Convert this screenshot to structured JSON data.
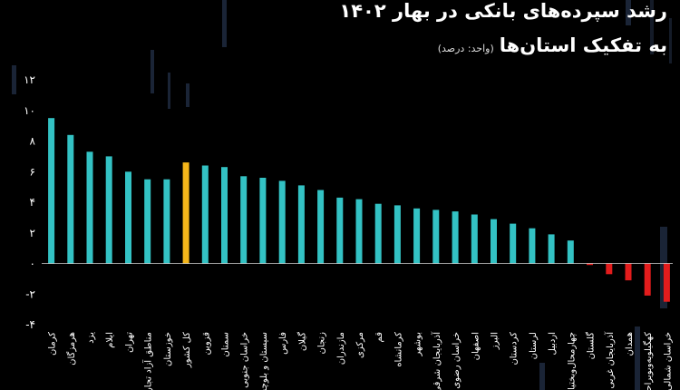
{
  "header": {
    "title": "رشد سپرده‌های بانکی در بهار ۱۴۰۲",
    "subtitle": "به تفکیک استان‌ها",
    "unit": "(واحد: درصد)"
  },
  "chart_data": {
    "type": "bar",
    "title": "رشد سپرده‌های بانکی در بهار ۱۴۰۲",
    "subtitle": "به تفکیک استان‌ها",
    "unit": "(واحد: درصد)",
    "xlabel": "",
    "ylabel": "",
    "ylim": [
      -4,
      12
    ],
    "yticks": [
      -4,
      -2,
      0,
      2,
      4,
      6,
      8,
      10,
      12
    ],
    "ytick_labels": [
      "-۴",
      "-۲",
      "۰",
      "۲",
      "۴",
      "۶",
      "۸",
      "۱۰",
      "۱۲"
    ],
    "grid": false,
    "legend": "none",
    "categories": [
      "کرمان",
      "هرمزگان",
      "یزد",
      "ایلام",
      "تهران",
      "مناطق آزاد تجاری",
      "خوزستان",
      "کل کشور",
      "قزوین",
      "سمنان",
      "خراسان جنوبی",
      "سیستان و بلوچستان",
      "فارس",
      "گیلان",
      "زنجان",
      "مازندران",
      "مرکزی",
      "قم",
      "کرمانشاه",
      "بوشهر",
      "آذربایجان شرقی",
      "خراسان رضوی",
      "اصفهان",
      "البرز",
      "کردستان",
      "لرستان",
      "اردبیل",
      "چهارمحال‌وبختیاری",
      "گلستان",
      "آذربایجان غربی",
      "همدان",
      "کهگیلویه‌وبویراحمد",
      "خراسان شمالی"
    ],
    "values": [
      9.5,
      8.4,
      7.3,
      7.0,
      6.0,
      5.5,
      5.5,
      6.6,
      6.4,
      6.3,
      5.7,
      5.6,
      5.4,
      5.1,
      4.8,
      4.3,
      4.2,
      3.9,
      3.8,
      3.6,
      3.5,
      3.4,
      3.2,
      2.9,
      2.6,
      2.3,
      1.9,
      1.5,
      -0.1,
      -0.7,
      -1.1,
      -2.1,
      -2.5
    ],
    "colors": {
      "positive": "#33c2c4",
      "national": "#f5b61a",
      "negative": "#e31c1c",
      "axis": "#ffffff",
      "text": "#ffffff"
    },
    "highlight_category": "کل کشور"
  }
}
